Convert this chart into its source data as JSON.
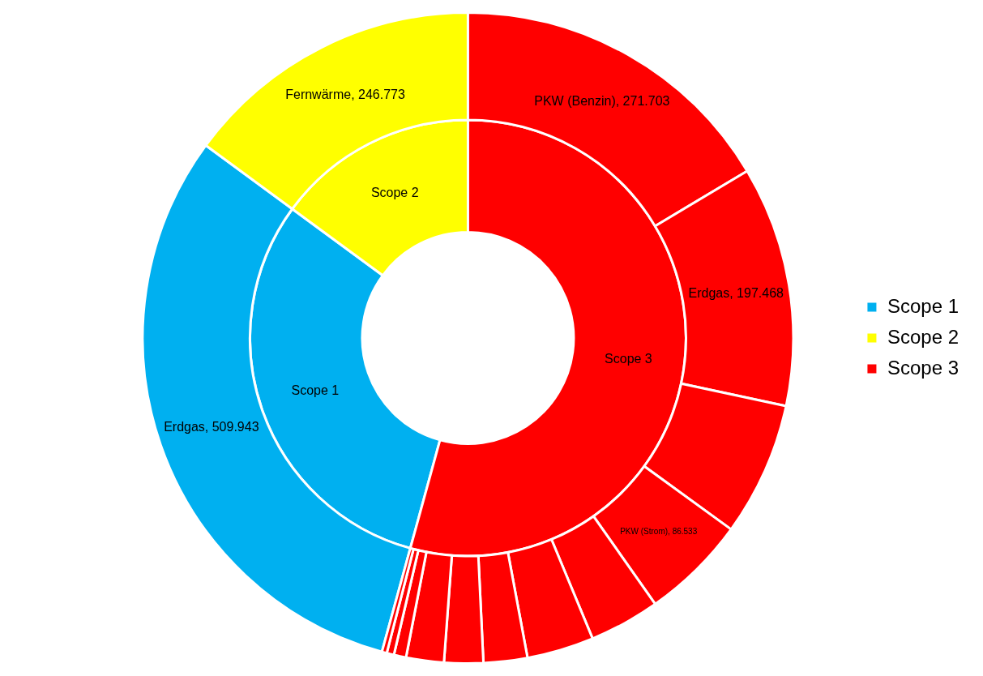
{
  "chart_data": [
    {
      "type": "donut",
      "legend": "right",
      "categories": [
        "Scope 1",
        "Scope 2",
        "Scope 3"
      ],
      "values": [
        30.82,
        14.92,
        54.26
      ],
      "colors": [
        "#00b0f0",
        "#ffff00",
        "#ff0000"
      ]
    },
    {
      "type": "donut",
      "categories": [
        "Erdgas",
        "Fernwärme",
        "PKW (Benzin)",
        "Erdgas",
        null,
        "PKW (Strom)",
        null,
        null,
        null,
        null,
        null,
        null,
        null,
        null
      ],
      "values": [
        509943,
        246773,
        271703,
        197468,
        110000,
        86533,
        58000,
        55000,
        36000,
        32000,
        31000,
        10000,
        6000,
        4000
      ],
      "colors": [
        "#00b0f0",
        "#ffff00",
        "#ff0000",
        "#ff0000",
        "#ff0000",
        "#ff0000",
        "#ff0000",
        "#ff0000",
        "#ff0000",
        "#ff0000",
        "#ff0000",
        "#ff0000",
        "#ff0000",
        "#ff0000"
      ],
      "value_labels": [
        "509.943",
        "246.773",
        "271.703",
        "197.468",
        null,
        "86.533",
        null,
        null,
        null,
        null,
        null,
        null,
        null,
        null
      ]
    }
  ]
}
